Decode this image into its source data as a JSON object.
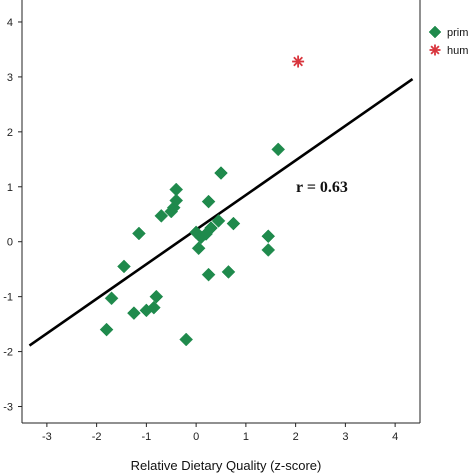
{
  "chart_data": {
    "type": "scatter",
    "title": "",
    "xlabel": "Relative Dietary Quality (z-score)",
    "ylabel": "",
    "xlim": [
      -3.5,
      4.5
    ],
    "ylim": [
      -3.3,
      4.4
    ],
    "x_ticks": [
      "-3",
      "-2",
      "-1",
      "0",
      "1",
      "2",
      "3",
      "4"
    ],
    "y_ticks": [
      "-3",
      "-2",
      "-1",
      "0",
      "1",
      "2",
      "3",
      "4"
    ],
    "grid": false,
    "legend_position": "top-right",
    "annotation": "r = 0.63",
    "regression_line": {
      "slope": 0.63,
      "intercept": 0.22
    },
    "series": [
      {
        "name": "prim",
        "marker": "diamond",
        "color": "#1f8a4c",
        "points": [
          [
            -1.8,
            -1.6
          ],
          [
            -1.7,
            -1.03
          ],
          [
            -1.45,
            -0.45
          ],
          [
            -1.25,
            -1.3
          ],
          [
            -1.15,
            0.15
          ],
          [
            -1.0,
            -1.25
          ],
          [
            -0.85,
            -1.2
          ],
          [
            -0.8,
            -1.0
          ],
          [
            -0.7,
            0.47
          ],
          [
            -0.5,
            0.55
          ],
          [
            -0.45,
            0.62
          ],
          [
            -0.4,
            0.95
          ],
          [
            -0.4,
            0.75
          ],
          [
            -0.2,
            -1.78
          ],
          [
            0.0,
            0.17
          ],
          [
            0.05,
            -0.12
          ],
          [
            0.1,
            0.08
          ],
          [
            0.2,
            0.14
          ],
          [
            0.25,
            0.73
          ],
          [
            0.25,
            -0.6
          ],
          [
            0.3,
            0.25
          ],
          [
            0.45,
            0.38
          ],
          [
            0.5,
            1.25
          ],
          [
            0.65,
            -0.55
          ],
          [
            0.75,
            0.33
          ],
          [
            1.45,
            0.1
          ],
          [
            1.45,
            -0.15
          ],
          [
            1.65,
            1.68
          ]
        ]
      },
      {
        "name": "hum",
        "marker": "asterisk",
        "color": "#d9363e",
        "points": [
          [
            2.05,
            3.28
          ]
        ]
      }
    ]
  }
}
